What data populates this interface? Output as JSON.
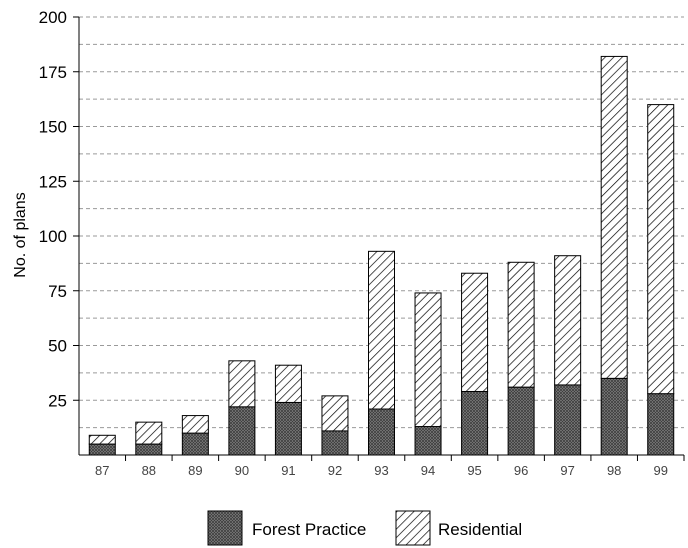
{
  "chart_data": {
    "type": "bar",
    "stacked": true,
    "ylabel": "No. of plans",
    "xlabel": "",
    "ylim": [
      0,
      200
    ],
    "ytick_step": 25,
    "yticks": [
      "200",
      "175",
      "150",
      "125",
      "100",
      "75",
      "50",
      "25"
    ],
    "grid": "horizontal dashed, every 12.5",
    "legend_position": "bottom",
    "categories": [
      "87",
      "88",
      "89",
      "90",
      "91",
      "92",
      "93",
      "94",
      "95",
      "96",
      "97",
      "98",
      "99"
    ],
    "series": [
      {
        "name": "Forest Practice",
        "pattern": "crosshatch-gray",
        "values": [
          5,
          5,
          10,
          22,
          24,
          11,
          21,
          13,
          29,
          31,
          32,
          35,
          28
        ]
      },
      {
        "name": "Residential",
        "pattern": "diagonal-hatch",
        "values": [
          4,
          10,
          8,
          21,
          17,
          16,
          72,
          61,
          54,
          57,
          59,
          147,
          132
        ]
      }
    ]
  }
}
